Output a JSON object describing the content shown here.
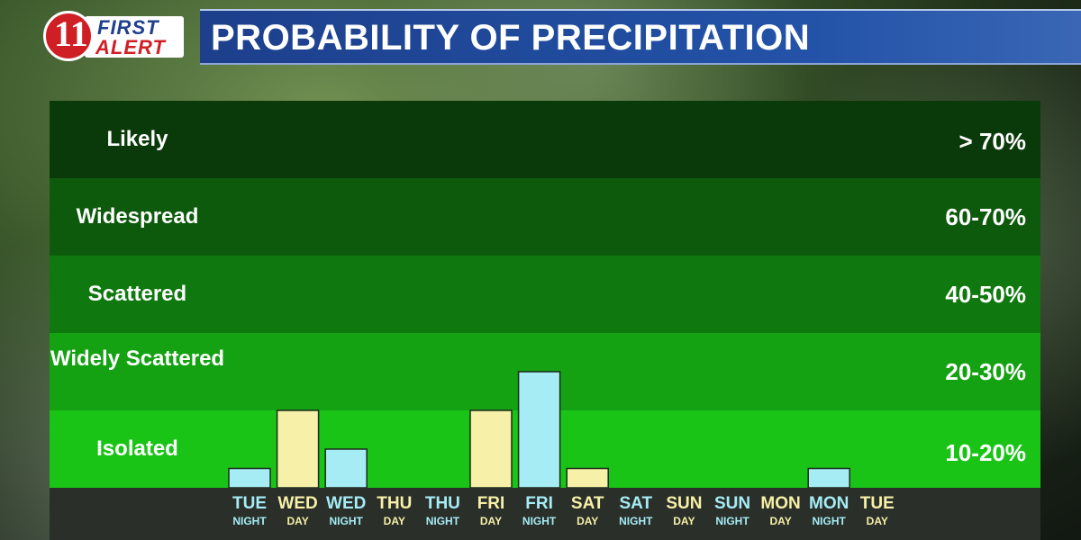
{
  "header": {
    "logo": {
      "line1": "FIRST",
      "line2": "ALERT",
      "numeral": "11"
    },
    "title": "PROBABILITY OF PRECIPITATION"
  },
  "colors": {
    "band_likely": "#0b3a0a",
    "band_widespread": "#0d5a0c",
    "band_scattered": "#0f780e",
    "band_widely_scattered": "#14a212",
    "band_isolated": "#1ac417",
    "day_bar": "#f7f0a8",
    "night_bar": "#a6ecf5",
    "day_text": "#f7f0a8",
    "night_text": "#a6ecf5"
  },
  "bands": [
    {
      "label": "Likely",
      "pct": "> 70%"
    },
    {
      "label": "Widespread",
      "pct": "60-70%"
    },
    {
      "label": "Scattered",
      "pct": "40-50%"
    },
    {
      "label": "Widely Scattered",
      "pct": "20-30%"
    },
    {
      "label": "Isolated",
      "pct": "10-20%"
    }
  ],
  "chart_data": {
    "type": "bar",
    "title": "PROBABILITY OF PRECIPITATION",
    "y_units": "percent chance of precipitation",
    "ylim": [
      0,
      50
    ],
    "categories": [
      {
        "day": "TUE",
        "period": "NIGHT"
      },
      {
        "day": "WED",
        "period": "DAY"
      },
      {
        "day": "WED",
        "period": "NIGHT"
      },
      {
        "day": "THU",
        "period": "DAY"
      },
      {
        "day": "THU",
        "period": "NIGHT"
      },
      {
        "day": "FRI",
        "period": "DAY"
      },
      {
        "day": "FRI",
        "period": "NIGHT"
      },
      {
        "day": "SAT",
        "period": "DAY"
      },
      {
        "day": "SAT",
        "period": "NIGHT"
      },
      {
        "day": "SUN",
        "period": "DAY"
      },
      {
        "day": "SUN",
        "period": "NIGHT"
      },
      {
        "day": "MON",
        "period": "DAY"
      },
      {
        "day": "MON",
        "period": "NIGHT"
      },
      {
        "day": "TUE",
        "period": "DAY"
      }
    ],
    "values": [
      5,
      20,
      10,
      0,
      0,
      20,
      30,
      5,
      0,
      0,
      0,
      0,
      5,
      0
    ],
    "grid": false,
    "legend": "none"
  }
}
